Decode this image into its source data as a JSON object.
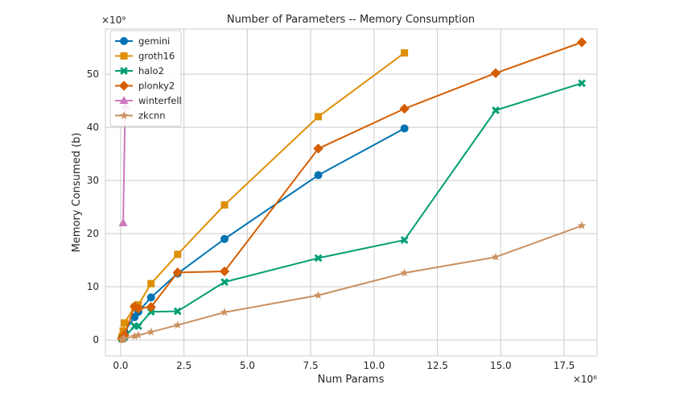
{
  "chart_data": {
    "type": "line",
    "title": "Number of Parameters -- Memory Consumption",
    "xlabel": "Num Params",
    "ylabel": "Memory Consumed (b)",
    "x_multiplier_label": "×10⁶",
    "y_multiplier_label": "×10⁹",
    "xlim": [
      -0.6,
      18.8
    ],
    "ylim": [
      -3.0,
      58.5
    ],
    "x_ticks": [
      0.0,
      2.5,
      5.0,
      7.5,
      10.0,
      12.5,
      15.0,
      17.5
    ],
    "x_tick_labels": [
      "0.0",
      "2.5",
      "5.0",
      "7.5",
      "10.0",
      "12.5",
      "15.0",
      "17.5"
    ],
    "y_ticks": [
      0,
      10,
      20,
      30,
      40,
      50
    ],
    "y_tick_labels": [
      "0",
      "10",
      "20",
      "30",
      "40",
      "50"
    ],
    "grid": true,
    "legend_position": "top-left",
    "series": [
      {
        "name": "gemini",
        "color": "#0173b2",
        "marker": "circle",
        "points": [
          [
            0.05,
            0.3
          ],
          [
            0.1,
            0.9
          ],
          [
            0.15,
            1.6
          ],
          [
            0.55,
            4.3
          ],
          [
            0.7,
            5.3
          ],
          [
            1.2,
            8.0
          ],
          [
            2.25,
            12.5
          ],
          [
            4.1,
            19.0
          ],
          [
            7.8,
            31.0
          ],
          [
            11.2,
            39.8
          ]
        ]
      },
      {
        "name": "groth16",
        "color": "#de8f05",
        "marker": "square",
        "points": [
          [
            0.05,
            0.6
          ],
          [
            0.1,
            1.7
          ],
          [
            0.15,
            3.2
          ],
          [
            0.55,
            6.2
          ],
          [
            0.7,
            6.6
          ],
          [
            1.2,
            10.6
          ],
          [
            2.25,
            16.1
          ],
          [
            4.1,
            25.4
          ],
          [
            7.8,
            42.0
          ],
          [
            11.2,
            54.0
          ]
        ]
      },
      {
        "name": "halo2",
        "color": "#029e73",
        "marker": "x",
        "points": [
          [
            0.05,
            0.2
          ],
          [
            0.1,
            0.3
          ],
          [
            0.15,
            0.5
          ],
          [
            0.55,
            2.6
          ],
          [
            0.7,
            2.6
          ],
          [
            1.2,
            5.3
          ],
          [
            2.25,
            5.4
          ],
          [
            4.1,
            10.9
          ],
          [
            7.8,
            15.4
          ],
          [
            11.2,
            18.8
          ],
          [
            14.8,
            43.2
          ],
          [
            18.2,
            48.3
          ]
        ]
      },
      {
        "name": "plonky2",
        "color": "#d55e00",
        "marker": "diamond",
        "points": [
          [
            0.05,
            0.3
          ],
          [
            0.1,
            0.6
          ],
          [
            0.15,
            0.9
          ],
          [
            0.55,
            6.3
          ],
          [
            0.7,
            5.9
          ],
          [
            1.2,
            6.2
          ],
          [
            2.25,
            12.7
          ],
          [
            4.1,
            12.9
          ],
          [
            7.8,
            36.0
          ],
          [
            11.2,
            43.5
          ],
          [
            14.8,
            50.2
          ],
          [
            18.2,
            56.0
          ]
        ]
      },
      {
        "name": "winterfell",
        "color": "#cc78bc",
        "marker": "triangle",
        "points": [
          [
            0.1,
            22.0
          ],
          [
            0.18,
            44.0
          ]
        ]
      },
      {
        "name": "zkcnn",
        "color": "#ca9161",
        "marker": "star",
        "points": [
          [
            0.05,
            0.1
          ],
          [
            0.1,
            0.2
          ],
          [
            0.15,
            0.3
          ],
          [
            0.55,
            0.7
          ],
          [
            0.7,
            0.9
          ],
          [
            1.2,
            1.5
          ],
          [
            2.25,
            2.8
          ],
          [
            4.1,
            5.2
          ],
          [
            7.8,
            8.4
          ],
          [
            11.2,
            12.6
          ],
          [
            14.8,
            15.6
          ],
          [
            18.2,
            21.5
          ]
        ]
      }
    ]
  }
}
